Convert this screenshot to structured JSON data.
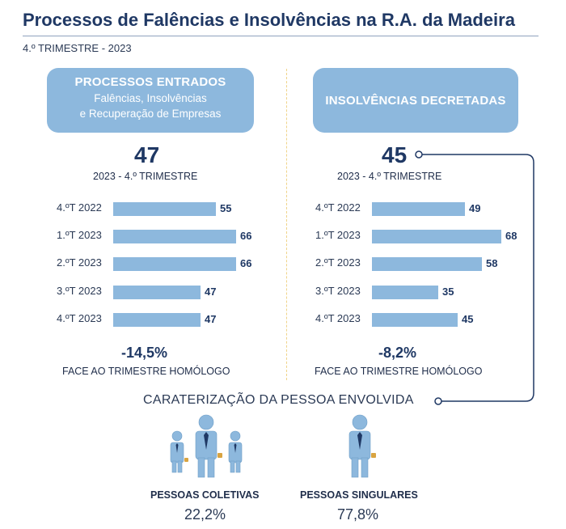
{
  "header": {
    "title": "Processos de Falências e Insolvências na R.A. da Madeira",
    "subtitle": "4.º TRIMESTRE - 2023"
  },
  "colors": {
    "bar": "#8db8dd",
    "pill": "#8db8dd",
    "navy": "#1f3864",
    "accent_line": "#1f3864"
  },
  "left_panel": {
    "heading": "PROCESSOS ENTRADOS",
    "subheading_line1": "Falências, Insolvências",
    "subheading_line2": "e Recuperação de Empresas",
    "total": "47",
    "total_label": "2023 - 4.º TRIMESTRE",
    "change": "-14,5%",
    "change_label": "FACE AO TRIMESTRE HOMÓLOGO"
  },
  "right_panel": {
    "heading": "INSOLVÊNCIAS DECRETADAS",
    "total": "45",
    "total_label": "2023 - 4.º TRIMESTRE",
    "change": "-8,2%",
    "change_label": "FACE AO TRIMESTRE HOMÓLOGO"
  },
  "characterization": {
    "title": "CARATERIZAÇÃO DA PESSOA ENVOLVIDA",
    "groups": [
      {
        "label": "PESSOAS COLETIVAS",
        "value": "22,2%",
        "icon": "group-people-icon"
      },
      {
        "label": "PESSOAS SINGULARES",
        "value": "77,8%",
        "icon": "single-person-icon"
      }
    ]
  },
  "chart_data": [
    {
      "type": "bar",
      "orientation": "horizontal",
      "categories": [
        "4.ºT 2022",
        "1.ºT 2023",
        "2.ºT 2023",
        "3.ºT 2023",
        "4.ºT 2023"
      ],
      "values": [
        55,
        66,
        66,
        47,
        47
      ],
      "title": "PROCESSOS ENTRADOS",
      "xlim": [
        0,
        66
      ]
    },
    {
      "type": "bar",
      "orientation": "horizontal",
      "categories": [
        "4.ºT 2022",
        "1.ºT 2023",
        "2.ºT 2023",
        "3.ºT 2023",
        "4.ºT 2023"
      ],
      "values": [
        49,
        68,
        58,
        35,
        45
      ],
      "title": "INSOLVÊNCIAS DECRETADAS",
      "xlim": [
        0,
        68
      ]
    }
  ]
}
